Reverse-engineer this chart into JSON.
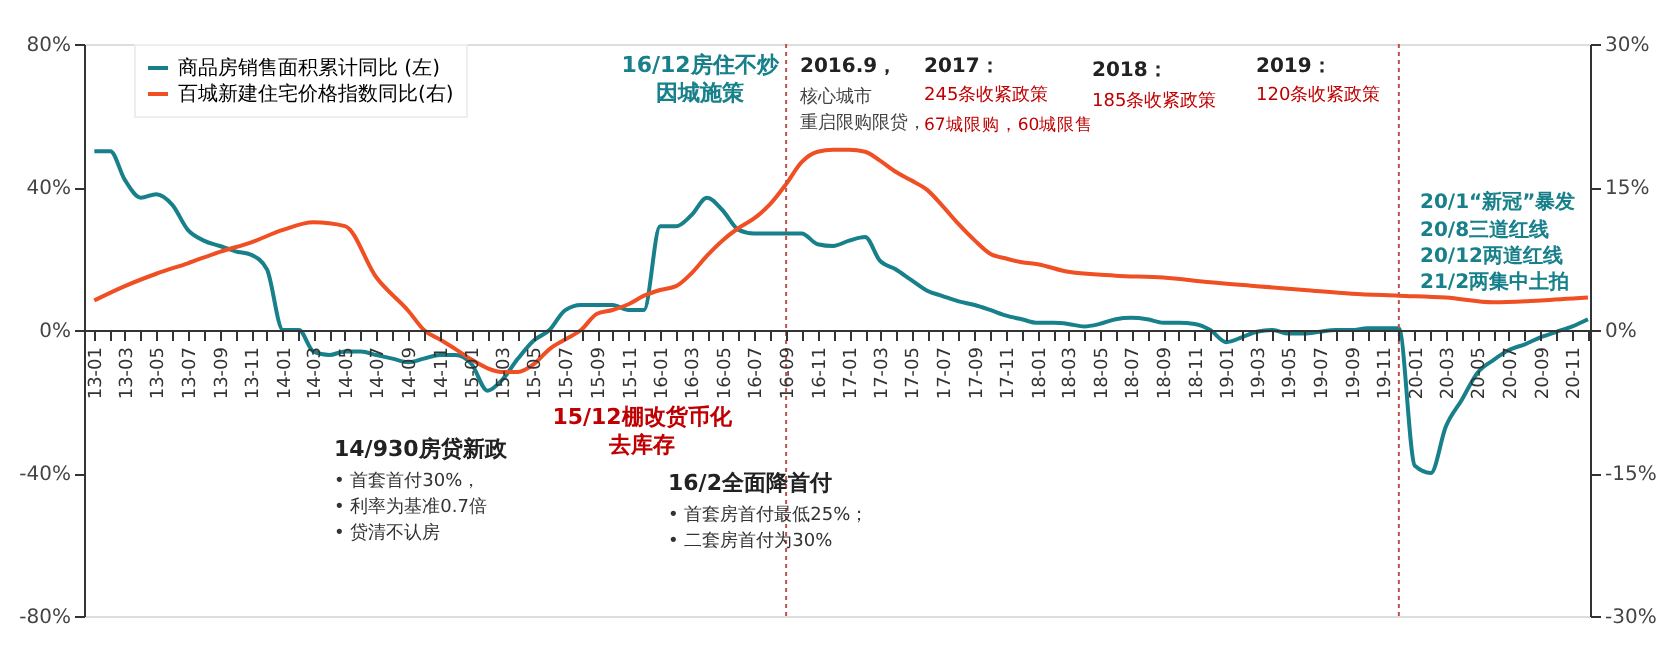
{
  "chart_data": {
    "type": "line",
    "x": [
      "2013-01",
      "2013-02",
      "2013-03",
      "2013-04",
      "2013-05",
      "2013-06",
      "2013-07",
      "2013-08",
      "2013-09",
      "2013-10",
      "2013-11",
      "2013-12",
      "2014-01",
      "2014-02",
      "2014-03",
      "2014-04",
      "2014-05",
      "2014-06",
      "2014-07",
      "2014-08",
      "2014-09",
      "2014-10",
      "2014-11",
      "2014-12",
      "2015-01",
      "2015-02",
      "2015-03",
      "2015-04",
      "2015-05",
      "2015-06",
      "2015-07",
      "2015-08",
      "2015-09",
      "2015-10",
      "2015-11",
      "2015-12",
      "2016-01",
      "2016-02",
      "2016-03",
      "2016-04",
      "2016-05",
      "2016-06",
      "2016-07",
      "2016-08",
      "2016-09",
      "2016-10",
      "2016-11",
      "2016-12",
      "2017-01",
      "2017-02",
      "2017-03",
      "2017-04",
      "2017-05",
      "2017-06",
      "2017-07",
      "2017-08",
      "2017-09",
      "2017-10",
      "2017-11",
      "2017-12",
      "2018-01",
      "2018-02",
      "2018-03",
      "2018-04",
      "2018-05",
      "2018-06",
      "2018-07",
      "2018-08",
      "2018-09",
      "2018-10",
      "2018-11",
      "2018-12",
      "2019-01",
      "2019-02",
      "2019-03",
      "2019-04",
      "2019-05",
      "2019-06",
      "2019-07",
      "2019-08",
      "2019-09",
      "2019-10",
      "2019-11",
      "2019-12",
      "2020-01",
      "2020-02",
      "2020-03",
      "2020-04",
      "2020-05",
      "2020-06",
      "2020-07",
      "2020-08",
      "2020-09",
      "2020-10",
      "2020-11",
      "2020-12"
    ],
    "series": [
      {
        "name": "商品房销售面积累计同比 (左)",
        "color": "#17808a",
        "values": [
          50,
          50,
          42,
          37,
          38,
          35,
          28,
          25,
          23.5,
          22,
          21,
          17,
          0,
          0,
          -6,
          -7,
          -6,
          -6,
          -7,
          -8,
          -9,
          -8,
          -7,
          -7,
          -9.5,
          -17,
          -14,
          -8,
          -3,
          0,
          5.5,
          7,
          7,
          7,
          5.6,
          5.6,
          29,
          29,
          32,
          37,
          33.5,
          28,
          27,
          27,
          27,
          27,
          24,
          23.5,
          25,
          26,
          19.5,
          17,
          14,
          11,
          9.5,
          8,
          7,
          5.6,
          4,
          3,
          2,
          2,
          1.7,
          1,
          1.7,
          3,
          3.4,
          3,
          2,
          2,
          1.7,
          0,
          -3.4,
          -2,
          -0.5,
          0,
          -1,
          -1,
          -0.5,
          0,
          0,
          0.5,
          0.5,
          0.5,
          -38,
          -40,
          -27,
          -19.5,
          -12,
          -8.4,
          -5.6,
          -4,
          -2,
          -0.5,
          1,
          3
        ]
      },
      {
        "name": "百城新建住宅价格指数同比(右)",
        "color": "#f04e23",
        "axis": "y2",
        "x": [
          "2013-01",
          "2013-03",
          "2013-05",
          "2013-07",
          "2013-09",
          "2013-11",
          "2014-01",
          "2014-03",
          "2014-05",
          "2014-07",
          "2014-09",
          "2014-10",
          "2014-11",
          "2014-12",
          "2015-01",
          "2015-03",
          "2015-04",
          "2015-05",
          "2015-06",
          "2015-07",
          "2015-08",
          "2015-09",
          "2015-10",
          "2015-11",
          "2015-12",
          "2016-01",
          "2016-02",
          "2016-03",
          "2016-04",
          "2016-05",
          "2016-06",
          "2016-07",
          "2016-08",
          "2016-09",
          "2016-10",
          "2016-11",
          "2016-12",
          "2017-01",
          "2017-02",
          "2017-03",
          "2017-04",
          "2017-05",
          "2017-06",
          "2017-07",
          "2017-08",
          "2017-09",
          "2017-10",
          "2017-11",
          "2017-12",
          "2018-01",
          "2018-03",
          "2018-06",
          "2018-09",
          "2018-12",
          "2019-03",
          "2019-06",
          "2019-09",
          "2019-12",
          "2020-03",
          "2020-06",
          "2020-09",
          "2020-12"
        ],
        "values": [
          3.1,
          4.6,
          5.9,
          7,
          8.2,
          9.2,
          10.5,
          11.3,
          10.9,
          5.5,
          2,
          0,
          -1,
          -2,
          -3.1,
          -4.4,
          -4.4,
          -3.6,
          -2,
          -1,
          0,
          1.7,
          2.1,
          2.7,
          3.6,
          4.2,
          4.6,
          5.9,
          7.8,
          9.4,
          10.7,
          11.7,
          13.2,
          15.3,
          17.6,
          18.7,
          18.9,
          18.9,
          18.7,
          17.8,
          16.6,
          15.7,
          14.7,
          13,
          11.1,
          9.4,
          8,
          7.5,
          7.1,
          6.9,
          6.1,
          5.7,
          5.5,
          5,
          4.6,
          4.2,
          3.8,
          3.6,
          3.4,
          2.9,
          3.1,
          3.4
        ]
      }
    ],
    "xlim": [
      "2012-12-12",
      "2020-12-05"
    ],
    "ylim": [
      -80,
      80
    ],
    "yticks": [
      {
        "value": -80,
        "label": "-80%"
      },
      {
        "value": -40,
        "label": "-40%"
      },
      {
        "value": 0,
        "label": "0%"
      },
      {
        "value": 40,
        "label": "40%"
      },
      {
        "value": 80,
        "label": "80%"
      }
    ],
    "y2lim": [
      -30,
      30
    ],
    "y2ticks": [
      {
        "value": -30,
        "label": "-30%"
      },
      {
        "value": -15,
        "label": "-15%"
      },
      {
        "value": 0,
        "label": "0%"
      },
      {
        "value": 15,
        "label": "15%"
      },
      {
        "value": 30,
        "label": "30%"
      }
    ],
    "xticks": [
      {
        "value": "2013-01",
        "label": "13-01"
      },
      {
        "value": "2013-02",
        "label": null
      },
      {
        "value": "2013-03",
        "label": "13-03"
      },
      {
        "value": "2013-04",
        "label": null
      },
      {
        "value": "2013-05",
        "label": "13-05"
      },
      {
        "value": "2013-06",
        "label": null
      },
      {
        "value": "2013-07",
        "label": "13-07"
      },
      {
        "value": "2013-08",
        "label": null
      },
      {
        "value": "2013-09",
        "label": "13-09"
      },
      {
        "value": "2013-10",
        "label": null
      },
      {
        "value": "2013-11",
        "label": "13-11"
      },
      {
        "value": "2013-12",
        "label": null
      },
      {
        "value": "2014-01",
        "label": "14-01"
      },
      {
        "value": "2014-02",
        "label": null
      },
      {
        "value": "2014-03",
        "label": "14-03"
      },
      {
        "value": "2014-04",
        "label": null
      },
      {
        "value": "2014-05",
        "label": "14-05"
      },
      {
        "value": "2014-06",
        "label": null
      },
      {
        "value": "2014-07",
        "label": "14-07"
      },
      {
        "value": "2014-08",
        "label": null
      },
      {
        "value": "2014-09",
        "label": "14-09"
      },
      {
        "value": "2014-10",
        "label": null
      },
      {
        "value": "2014-11",
        "label": "14-11"
      },
      {
        "value": "2014-12",
        "label": null
      },
      {
        "value": "2015-01",
        "label": "15-01"
      },
      {
        "value": "2015-02",
        "label": null
      },
      {
        "value": "2015-03",
        "label": "15-03"
      },
      {
        "value": "2015-04",
        "label": null
      },
      {
        "value": "2015-05",
        "label": "15-05"
      },
      {
        "value": "2015-06",
        "label": null
      },
      {
        "value": "2015-07",
        "label": "15-07"
      },
      {
        "value": "2015-08",
        "label": null
      },
      {
        "value": "2015-09",
        "label": "15-09"
      },
      {
        "value": "2015-10",
        "label": null
      },
      {
        "value": "2015-11",
        "label": "15-11"
      },
      {
        "value": "2015-12",
        "label": null
      },
      {
        "value": "2016-01",
        "label": "16-01"
      },
      {
        "value": "2016-02",
        "label": null
      },
      {
        "value": "2016-03",
        "label": "16-03"
      },
      {
        "value": "2016-04",
        "label": null
      },
      {
        "value": "2016-05",
        "label": "16-05"
      },
      {
        "value": "2016-06",
        "label": null
      },
      {
        "value": "2016-07",
        "label": "16-07"
      },
      {
        "value": "2016-08",
        "label": null
      },
      {
        "value": "2016-09",
        "label": "16-09"
      },
      {
        "value": "2016-10",
        "label": null
      },
      {
        "value": "2016-11",
        "label": "16-11"
      },
      {
        "value": "2016-12",
        "label": null
      },
      {
        "value": "2017-01",
        "label": "17-01"
      },
      {
        "value": "2017-02",
        "label": null
      },
      {
        "value": "2017-03",
        "label": "17-03"
      },
      {
        "value": "2017-04",
        "label": null
      },
      {
        "value": "2017-05",
        "label": "17-05"
      },
      {
        "value": "2017-06",
        "label": null
      },
      {
        "value": "2017-07",
        "label": "17-07"
      },
      {
        "value": "2017-08",
        "label": null
      },
      {
        "value": "2017-09",
        "label": "17-09"
      },
      {
        "value": "2017-10",
        "label": null
      },
      {
        "value": "2017-11",
        "label": "17-11"
      },
      {
        "value": "2017-12",
        "label": null
      },
      {
        "value": "2018-01",
        "label": "18-01"
      },
      {
        "value": "2018-02",
        "label": null
      },
      {
        "value": "2018-03",
        "label": "18-03"
      },
      {
        "value": "2018-04",
        "label": null
      },
      {
        "value": "2018-05",
        "label": "18-05"
      },
      {
        "value": "2018-06",
        "label": null
      },
      {
        "value": "2018-07",
        "label": "18-07"
      },
      {
        "value": "2018-08",
        "label": null
      },
      {
        "value": "2018-09",
        "label": "18-09"
      },
      {
        "value": "2018-10",
        "label": null
      },
      {
        "value": "2018-11",
        "label": "18-11"
      },
      {
        "value": "2018-12",
        "label": null
      },
      {
        "value": "2019-01",
        "label": "19-01"
      },
      {
        "value": "2019-02",
        "label": null
      },
      {
        "value": "2019-03",
        "label": "19-03"
      },
      {
        "value": "2019-04",
        "label": null
      },
      {
        "value": "2019-05",
        "label": "19-05"
      },
      {
        "value": "2019-06",
        "label": null
      },
      {
        "value": "2019-07",
        "label": "19-07"
      },
      {
        "value": "2019-08",
        "label": null
      },
      {
        "value": "2019-09",
        "label": "19-09"
      },
      {
        "value": "2019-10",
        "label": null
      },
      {
        "value": "2019-11",
        "label": "19-11"
      },
      {
        "value": "2019-12",
        "label": null
      },
      {
        "value": "2020-01",
        "label": "20-01"
      },
      {
        "value": "2020-02",
        "label": null
      },
      {
        "value": "2020-03",
        "label": "20-03"
      },
      {
        "value": "2020-04",
        "label": null
      },
      {
        "value": "2020-05",
        "label": "20-05"
      },
      {
        "value": "2020-06",
        "label": null
      },
      {
        "value": "2020-07",
        "label": "20-07"
      },
      {
        "value": "2020-08",
        "label": null
      },
      {
        "value": "2020-09",
        "label": "20-09"
      },
      {
        "value": "2020-10",
        "label": null
      },
      {
        "value": "2020-11",
        "label": "20-11"
      },
      {
        "value": "2020-12",
        "label": null
      }
    ],
    "ref_lines": [
      {
        "axis": "x",
        "value": "2016-09",
        "label": null,
        "color": "#c0504d",
        "line_style": "dotted"
      },
      {
        "axis": "x",
        "value": "2019-12",
        "label": null,
        "color": "#c0504d",
        "line_style": "dotted"
      }
    ],
    "annotations": [
      "16/12房住不炒",
      "因城施策",
      "2016.9，",
      "核心城市",
      "重启限购限贷，",
      "2017：",
      "245条收紧政策",
      "67城限购，60城限售",
      "2018：",
      "185条收紧政策",
      "2019：",
      "120条收紧政策",
      "20/1“新冠”暴发",
      "20/8三道红线",
      "20/12两道红线",
      "21/2两集中土拍",
      "14/930房贷新政",
      "• 首套首付30%，",
      "• 利率为基准0.7倍",
      "• 贷清不认房",
      "15/12棚改货币化",
      "去库存",
      "16/2全面降首付",
      "• 首套房首付最低25%；",
      "• 二套房首付为30%"
    ],
    "grid": false,
    "legend": "top left",
    "marker": "none",
    "line_style": "solid"
  }
}
